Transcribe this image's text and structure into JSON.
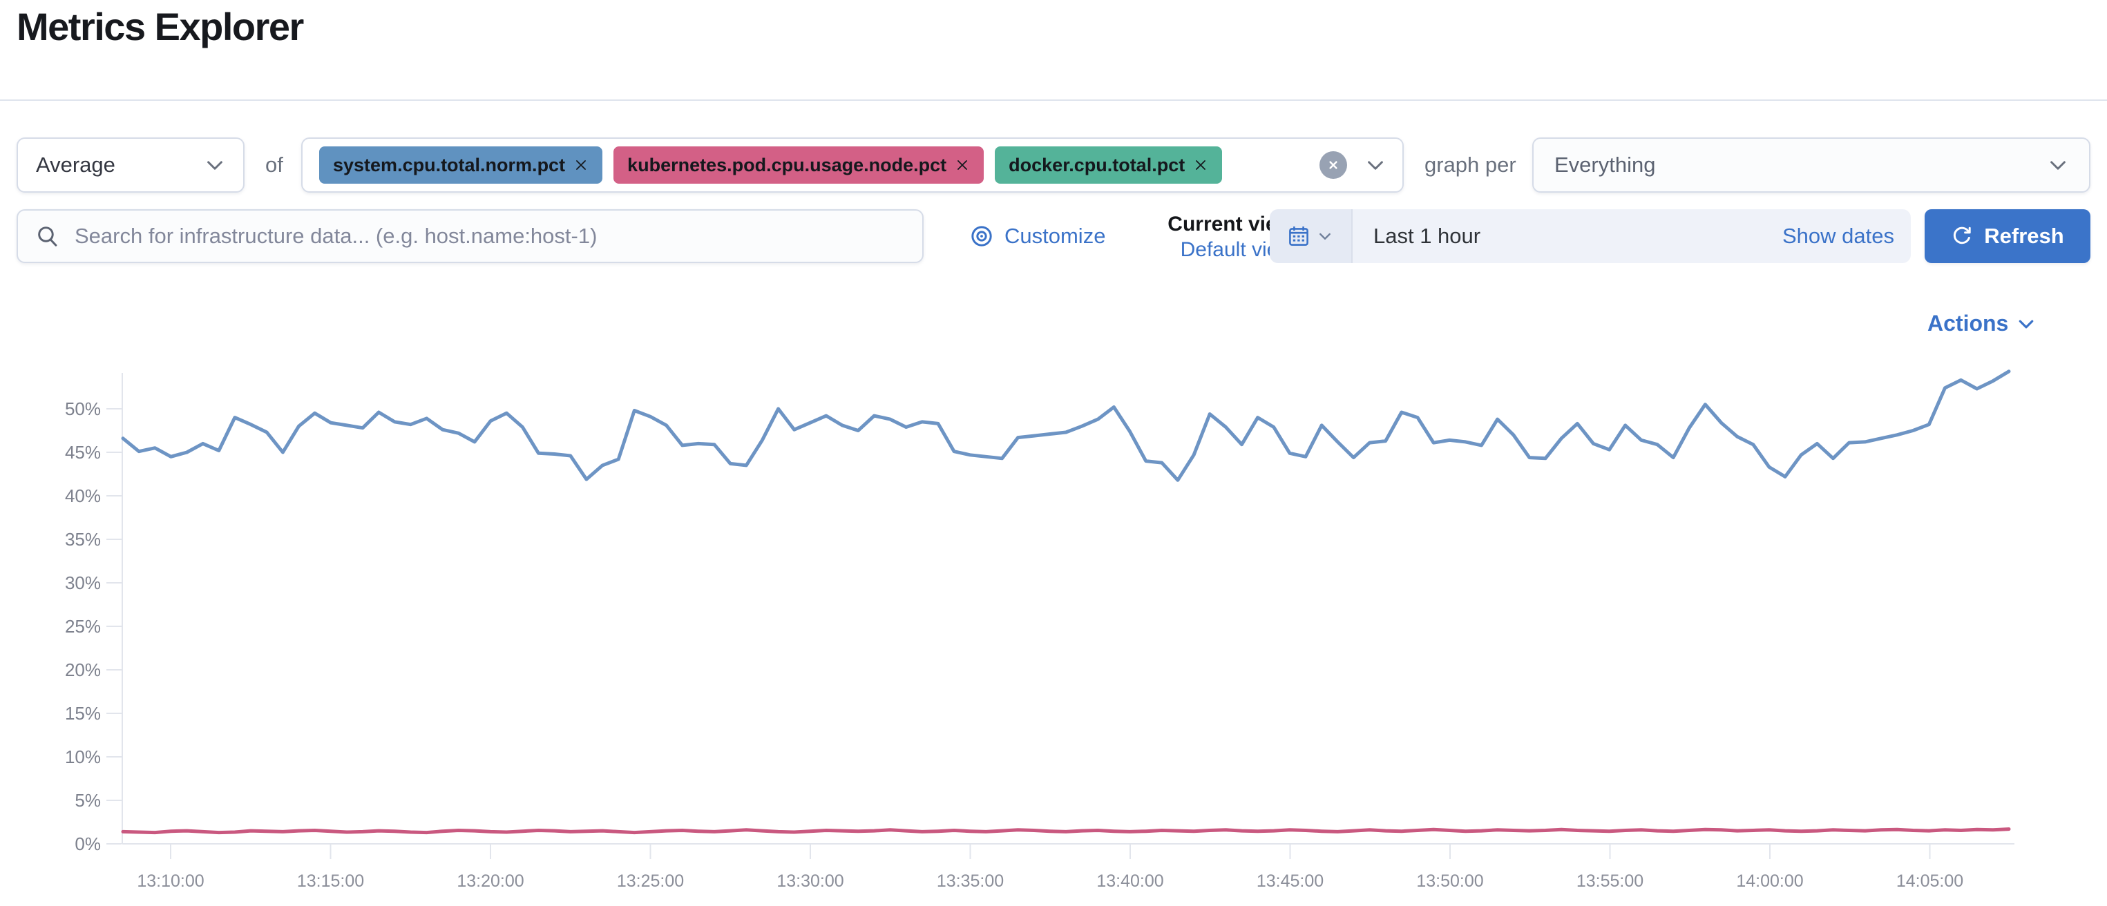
{
  "page": {
    "title": "Metrics Explorer"
  },
  "toolbar": {
    "aggregation_value": "Average",
    "of_label": "of",
    "metrics": [
      {
        "label": "system.cpu.total.norm.pct",
        "color": "#6092c0"
      },
      {
        "label": "kubernetes.pod.cpu.usage.node.pct",
        "color": "#d36086"
      },
      {
        "label": "docker.cpu.total.pct",
        "color": "#54b399"
      }
    ],
    "graph_per_label": "graph per",
    "group_by_value": "Everything"
  },
  "search": {
    "placeholder": "Search for infrastructure data... (e.g. host.name:host-1)"
  },
  "view": {
    "customize_label": "Customize",
    "current_label": "Current view",
    "default_label": "Default view"
  },
  "time": {
    "range_label": "Last 1 hour",
    "show_dates_label": "Show dates",
    "refresh_label": "Refresh"
  },
  "actions": {
    "label": "Actions"
  },
  "colors": {
    "link_blue": "#3a72c8",
    "refresh_button": "#3b74c9",
    "line_blue": "#6d94c4",
    "line_pink": "#c9587f",
    "axis_gray": "#e2e5ec",
    "tick_text": "#82868f"
  },
  "chart_data": {
    "type": "line",
    "title": "",
    "xlabel": "",
    "ylabel": "",
    "ylim": [
      0,
      55
    ],
    "grid": false,
    "legend": false,
    "yticks": [
      "0%",
      "5%",
      "10%",
      "15%",
      "20%",
      "25%",
      "30%",
      "35%",
      "40%",
      "45%",
      "50%"
    ],
    "xticks": [
      "13:10:00",
      "13:15:00",
      "13:20:00",
      "13:25:00",
      "13:30:00",
      "13:35:00",
      "13:40:00",
      "13:45:00",
      "13:50:00",
      "13:55:00",
      "14:00:00",
      "14:05:00"
    ],
    "x_start": "13:08:30",
    "x_interval_seconds": 30,
    "series": [
      {
        "name": "system.cpu.total.norm.pct (Average)",
        "color": "#6d94c4",
        "values": [
          46.6,
          45.1,
          45.5,
          44.5,
          45.0,
          46.0,
          45.2,
          49.0,
          48.2,
          47.3,
          45.0,
          48.0,
          49.5,
          48.4,
          48.1,
          47.8,
          49.6,
          48.5,
          48.2,
          48.9,
          47.6,
          47.2,
          46.2,
          48.6,
          49.5,
          47.9,
          44.9,
          44.8,
          44.6,
          41.9,
          43.5,
          44.2,
          49.8,
          49.1,
          48.1,
          45.8,
          46.0,
          45.9,
          43.7,
          43.5,
          46.4,
          50.0,
          47.6,
          48.4,
          49.2,
          48.1,
          47.5,
          49.2,
          48.8,
          47.9,
          48.5,
          48.3,
          45.1,
          44.7,
          44.5,
          44.3,
          46.7,
          46.9,
          47.1,
          47.3,
          48.0,
          48.8,
          50.2,
          47.4,
          44.0,
          43.8,
          41.8,
          44.7,
          49.4,
          47.9,
          45.9,
          49.0,
          47.9,
          44.9,
          44.5,
          48.1,
          46.2,
          44.4,
          46.1,
          46.3,
          49.6,
          49.0,
          46.1,
          46.4,
          46.2,
          45.8,
          48.8,
          47.0,
          44.4,
          44.3,
          46.6,
          48.3,
          46.0,
          45.3,
          48.1,
          46.4,
          45.9,
          44.4,
          47.8,
          50.5,
          48.4,
          46.8,
          45.9,
          43.3,
          42.2,
          44.7,
          46.0,
          44.3,
          46.1,
          46.2,
          46.6,
          47.0,
          47.5,
          48.2,
          52.4,
          53.3,
          52.3,
          53.2,
          54.3
        ]
      },
      {
        "name": "kubernetes.pod.cpu.usage.node.pct (Average)",
        "color": "#c9587f",
        "values": [
          1.4,
          1.35,
          1.3,
          1.45,
          1.5,
          1.4,
          1.3,
          1.35,
          1.5,
          1.45,
          1.4,
          1.5,
          1.55,
          1.45,
          1.35,
          1.4,
          1.5,
          1.45,
          1.35,
          1.3,
          1.45,
          1.55,
          1.5,
          1.4,
          1.35,
          1.45,
          1.55,
          1.5,
          1.4,
          1.45,
          1.5,
          1.4,
          1.3,
          1.4,
          1.5,
          1.55,
          1.45,
          1.4,
          1.5,
          1.6,
          1.5,
          1.4,
          1.35,
          1.45,
          1.55,
          1.5,
          1.45,
          1.5,
          1.6,
          1.5,
          1.4,
          1.45,
          1.55,
          1.45,
          1.4,
          1.5,
          1.6,
          1.55,
          1.45,
          1.4,
          1.5,
          1.55,
          1.45,
          1.4,
          1.45,
          1.55,
          1.5,
          1.45,
          1.55,
          1.6,
          1.5,
          1.45,
          1.5,
          1.6,
          1.55,
          1.45,
          1.4,
          1.5,
          1.6,
          1.5,
          1.45,
          1.55,
          1.65,
          1.55,
          1.45,
          1.5,
          1.6,
          1.55,
          1.5,
          1.55,
          1.65,
          1.55,
          1.5,
          1.45,
          1.55,
          1.6,
          1.5,
          1.45,
          1.55,
          1.65,
          1.6,
          1.5,
          1.55,
          1.6,
          1.5,
          1.45,
          1.5,
          1.6,
          1.55,
          1.5,
          1.6,
          1.65,
          1.55,
          1.5,
          1.6,
          1.55,
          1.65,
          1.6,
          1.7
        ]
      }
    ]
  }
}
